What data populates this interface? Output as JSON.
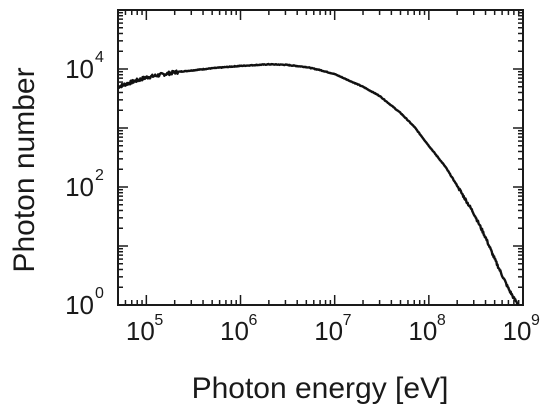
{
  "chart_data": {
    "type": "line",
    "xlabel": "Photon energy [eV]",
    "ylabel": "Photon number",
    "x_scale": "log",
    "y_scale": "log",
    "xlim": [
      50000,
      1000000000
    ],
    "ylim": [
      1,
      100000
    ],
    "grid": false,
    "legend": "none",
    "line_color": "#111111",
    "x_ticks": [
      {
        "base": "10",
        "exp": "5",
        "value": 100000
      },
      {
        "base": "10",
        "exp": "6",
        "value": 1000000
      },
      {
        "base": "10",
        "exp": "7",
        "value": 10000000
      },
      {
        "base": "10",
        "exp": "8",
        "value": 100000000
      },
      {
        "base": "10",
        "exp": "9",
        "value": 1000000000
      }
    ],
    "y_ticks": [
      {
        "base": "10",
        "exp": "0",
        "value": 1
      },
      {
        "base": "10",
        "exp": "2",
        "value": 100
      },
      {
        "base": "10",
        "exp": "4",
        "value": 10000
      }
    ],
    "series": [
      {
        "x": [
          50000,
          70000,
          100000,
          200000,
          500000,
          1000000,
          2000000,
          3000000,
          5000000,
          7000000,
          10000000,
          20000000,
          30000000,
          50000000,
          70000000,
          100000000,
          150000000,
          200000000,
          300000000,
          400000000,
          500000000,
          600000000,
          700000000,
          800000000,
          900000000
        ],
        "y": [
          5000,
          6000,
          7200,
          8800,
          10300,
          11300,
          12000,
          11800,
          10800,
          9600,
          8200,
          5000,
          3500,
          1800,
          1050,
          500,
          220,
          105,
          36,
          14,
          6,
          3.2,
          1.9,
          1.3,
          1.0
        ]
      }
    ]
  }
}
